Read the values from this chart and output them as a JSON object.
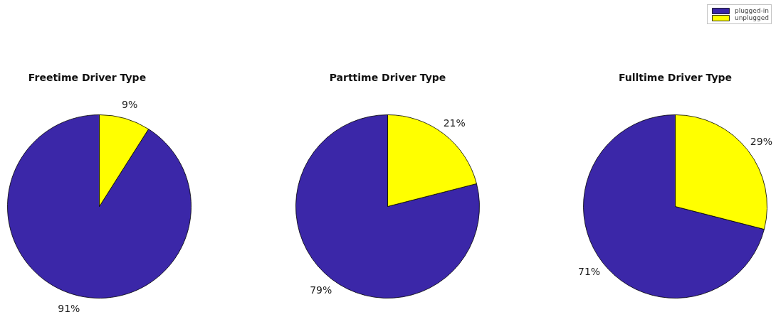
{
  "chart_data": [
    {
      "type": "pie",
      "title": "Freetime Driver Type",
      "categories": [
        "plugged-in",
        "unplugged"
      ],
      "values": [
        91,
        9
      ],
      "colors": [
        "#3b27a8",
        "#ffff00"
      ],
      "value_labels": [
        "91%",
        "9%"
      ],
      "legend": "top right"
    },
    {
      "type": "pie",
      "title": "Parttime Driver Type",
      "categories": [
        null,
        null
      ],
      "values": [
        79,
        21
      ],
      "colors": [
        "#3b27a8",
        "#ffff00"
      ],
      "value_labels": [
        "79%",
        "21%"
      ]
    },
    {
      "type": "pie",
      "title": "Fulltime Driver Type",
      "categories": [
        null,
        null
      ],
      "values": [
        71,
        29
      ],
      "colors": [
        "#3b27a8",
        "#ffff00"
      ],
      "value_labels": [
        "71%",
        "29%"
      ]
    }
  ]
}
